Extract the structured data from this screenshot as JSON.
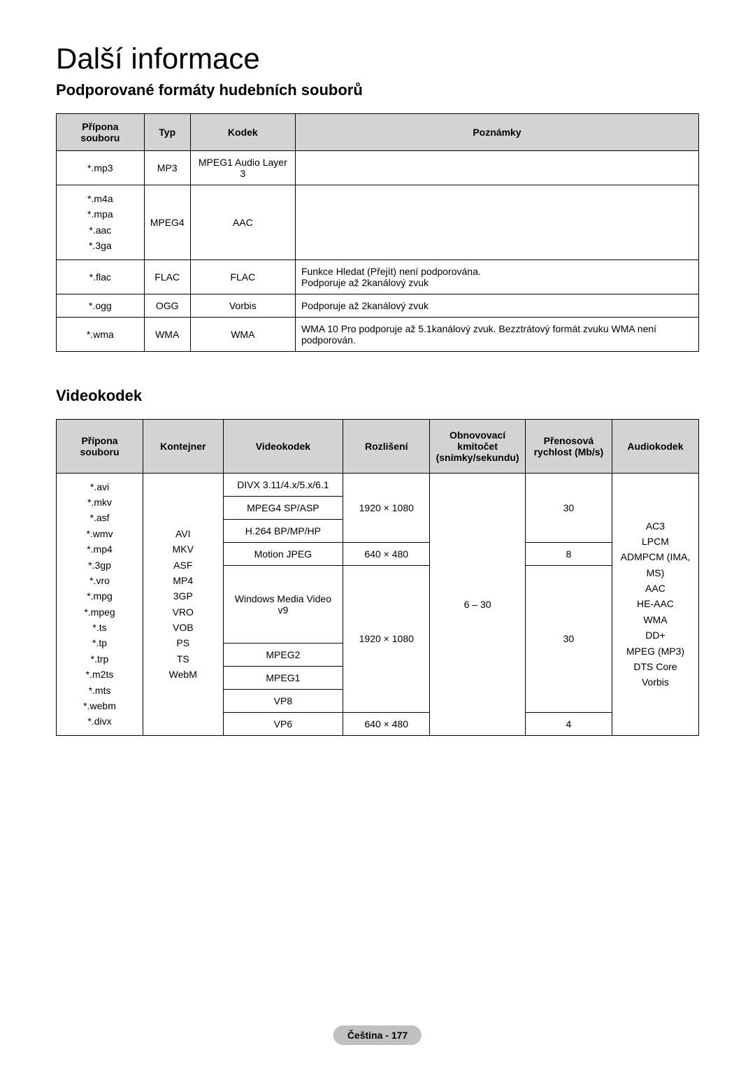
{
  "pageTitle": "Další informace",
  "section1": {
    "title": "Podporované formáty hudebních souborů",
    "columns": [
      "Přípona souboru",
      "Typ",
      "Kodek",
      "Poznámky"
    ],
    "rows": [
      {
        "ext": "*.mp3",
        "type": "MP3",
        "codec": "MPEG1 Audio Layer 3",
        "note": ""
      },
      {
        "ext": "*.m4a\n*.mpa\n*.aac\n*.3ga",
        "type": "MPEG4",
        "codec": "AAC",
        "note": ""
      },
      {
        "ext": "*.flac",
        "type": "FLAC",
        "codec": "FLAC",
        "note": "Funkce Hledat (Přejít) není podporována.\nPodporuje až 2kanálový zvuk"
      },
      {
        "ext": "*.ogg",
        "type": "OGG",
        "codec": "Vorbis",
        "note": "Podporuje až 2kanálový zvuk"
      },
      {
        "ext": "*.wma",
        "type": "WMA",
        "codec": "WMA",
        "note": "WMA 10 Pro podporuje až 5.1kanálový zvuk. Bezztrátový formát zvuku WMA není podporován."
      }
    ]
  },
  "section2": {
    "title": "Videokodek",
    "columns": [
      "Přípona souboru",
      "Kontejner",
      "Videokodek",
      "Rozlišení",
      "Obnovovací kmitočet (snímky/sekundu)",
      "Přenosová rychlost (Mb/s)",
      "Audiokodek"
    ],
    "extensions": "*.avi\n*.mkv\n*.asf\n*.wmv\n*.mp4\n*.3gp\n*.vro\n*.mpg\n*.mpeg\n*.ts\n*.tp\n*.trp\n*.m2ts\n*.mts\n*.webm\n*.divx",
    "containers": "AVI\nMKV\nASF\nMP4\n3GP\nVRO\nVOB\nPS\nTS\nWebM",
    "codecs": {
      "divx": "DIVX 3.11/4.x/5.x/6.1",
      "mpeg4": "MPEG4 SP/ASP",
      "h264": "H.264 BP/MP/HP",
      "mjpeg": "Motion JPEG",
      "wmv": "Windows Media Video v9",
      "mpeg2": "MPEG2",
      "mpeg1": "MPEG1",
      "vp8": "VP8",
      "vp6": "VP6"
    },
    "resolutions": {
      "hd": "1920 × 1080",
      "sd": "640 × 480"
    },
    "framerate": "6 – 30",
    "bitrates": {
      "r30": "30",
      "r8": "8",
      "r4": "4"
    },
    "audiocodecs": "AC3\nLPCM\nADMPCM (IMA, MS)\nAAC\nHE-AAC\nWMA\nDD+\nMPEG (MP3)\nDTS Core\nVorbis"
  },
  "footer": "Čeština - 177"
}
